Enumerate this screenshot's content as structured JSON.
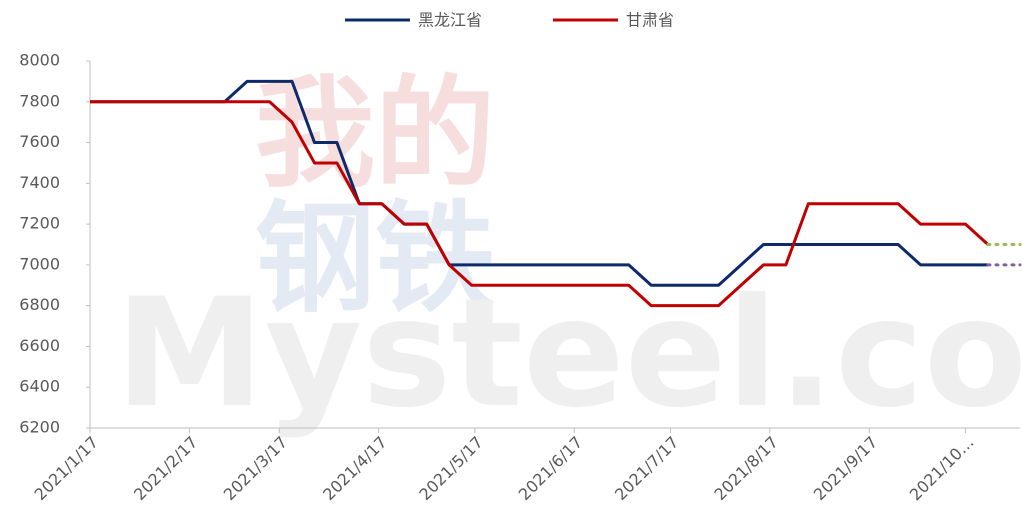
{
  "chart_data": {
    "type": "line",
    "watermark": [
      "我的",
      "钢铁",
      "Mysteel.com"
    ],
    "x": [
      "2021/1/17",
      "2021/1/24",
      "2021/1/31",
      "2021/2/7",
      "2021/2/14",
      "2021/2/21",
      "2021/2/28",
      "2021/3/7",
      "2021/3/14",
      "2021/3/21",
      "2021/3/28",
      "2021/4/4",
      "2021/4/11",
      "2021/4/18",
      "2021/4/25",
      "2021/5/2",
      "2021/5/9",
      "2021/5/16",
      "2021/5/23",
      "2021/5/30",
      "2021/6/6",
      "2021/6/13",
      "2021/6/20",
      "2021/6/27",
      "2021/7/4",
      "2021/7/11",
      "2021/7/18",
      "2021/7/25",
      "2021/8/1",
      "2021/8/8",
      "2021/8/15",
      "2021/8/22",
      "2021/8/29",
      "2021/9/5",
      "2021/9/12",
      "2021/9/19",
      "2021/9/26",
      "2021/10/3",
      "2021/10/10",
      "2021/10/17",
      "2021/10/24"
    ],
    "series": [
      {
        "name": "黑龙江省",
        "color": "#0d2a6b",
        "extension_color": "#8064a2",
        "values": [
          7800,
          7800,
          7800,
          7800,
          7800,
          7800,
          7800,
          7900,
          7900,
          7900,
          7600,
          7600,
          7300,
          7300,
          7200,
          7200,
          7000,
          7000,
          7000,
          7000,
          7000,
          7000,
          7000,
          7000,
          7000,
          6900,
          6900,
          6900,
          6900,
          7000,
          7100,
          7100,
          7100,
          7100,
          7100,
          7100,
          7100,
          7000,
          7000,
          7000,
          7000
        ]
      },
      {
        "name": "甘肃省",
        "color": "#c00000",
        "extension_color": "#9bbb59",
        "values": [
          7800,
          7800,
          7800,
          7800,
          7800,
          7800,
          7800,
          7800,
          7800,
          7700,
          7500,
          7500,
          7300,
          7300,
          7200,
          7200,
          7000,
          6900,
          6900,
          6900,
          6900,
          6900,
          6900,
          6900,
          6900,
          6800,
          6800,
          6800,
          6800,
          6900,
          7000,
          7000,
          7300,
          7300,
          7300,
          7300,
          7300,
          7200,
          7200,
          7200,
          7100
        ]
      }
    ],
    "xlim": [
      "2021/1/17",
      "2021/11/3"
    ],
    "xticks": [
      "2021/1/17",
      "2021/2/17",
      "2021/3/17",
      "2021/4/17",
      "2021/5/17",
      "2021/6/17",
      "2021/7/17",
      "2021/8/17",
      "2021/9/17",
      {
        "value": "2021/10/17",
        "label": "2021/10…"
      }
    ],
    "ylim": [
      6200,
      8000
    ],
    "yticks": [
      6200,
      6400,
      6600,
      6800,
      7000,
      7200,
      7400,
      7600,
      7800,
      8000
    ],
    "grid": false,
    "legend": "top"
  }
}
